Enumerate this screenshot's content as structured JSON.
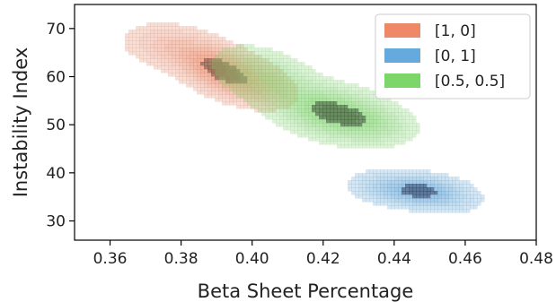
{
  "chart_data": {
    "type": "kde-contour",
    "title": "",
    "xlabel": "Beta Sheet Percentage",
    "ylabel": "Instability Index",
    "xlim": [
      0.35,
      0.48
    ],
    "ylim": [
      26,
      75
    ],
    "x_ticks": [
      0.36,
      0.38,
      0.4,
      0.42,
      0.44,
      0.46,
      0.48
    ],
    "x_tick_labels": [
      "0.36",
      "0.38",
      "0.40",
      "0.42",
      "0.44",
      "0.46",
      "0.48"
    ],
    "y_ticks": [
      30,
      40,
      50,
      60,
      70
    ],
    "y_tick_labels": [
      "30",
      "40",
      "50",
      "60",
      "70"
    ],
    "grid": false,
    "legend_position": "top-right",
    "series": [
      {
        "name": "[1, 0]",
        "color": "#ee8866",
        "dark_color": "#8a4a30",
        "centers": [
          {
            "x": 0.391,
            "y": 61.5,
            "weight": 1.0,
            "sx": 0.0075,
            "sy": 3.4,
            "rho": -0.45
          },
          {
            "x": 0.376,
            "y": 66.5,
            "weight": 0.35,
            "sx": 0.008,
            "sy": 3.0,
            "rho": -0.2
          },
          {
            "x": 0.402,
            "y": 58.0,
            "weight": 0.35,
            "sx": 0.007,
            "sy": 3.0,
            "rho": -0.3
          }
        ]
      },
      {
        "name": "[0, 1]",
        "color": "#66aadd",
        "dark_color": "#2a4e7a",
        "centers": [
          {
            "x": 0.447,
            "y": 36.3,
            "weight": 1.0,
            "sx": 0.0065,
            "sy": 1.9,
            "rho": 0.0
          },
          {
            "x": 0.436,
            "y": 37.5,
            "weight": 0.35,
            "sx": 0.006,
            "sy": 2.0,
            "rho": 0.0
          },
          {
            "x": 0.456,
            "y": 34.5,
            "weight": 0.3,
            "sx": 0.006,
            "sy": 2.0,
            "rho": 0.0
          }
        ]
      },
      {
        "name": "[0.5, 0.5]",
        "color": "#7dd66a",
        "dark_color": "#3a6a30",
        "centers": [
          {
            "x": 0.423,
            "y": 52.5,
            "weight": 1.0,
            "sx": 0.0095,
            "sy": 3.3,
            "rho": -0.3
          },
          {
            "x": 0.404,
            "y": 60.0,
            "weight": 0.55,
            "sx": 0.0085,
            "sy": 3.6,
            "rho": -0.4
          },
          {
            "x": 0.435,
            "y": 50.0,
            "weight": 0.3,
            "sx": 0.007,
            "sy": 2.5,
            "rho": -0.2
          }
        ]
      }
    ]
  }
}
